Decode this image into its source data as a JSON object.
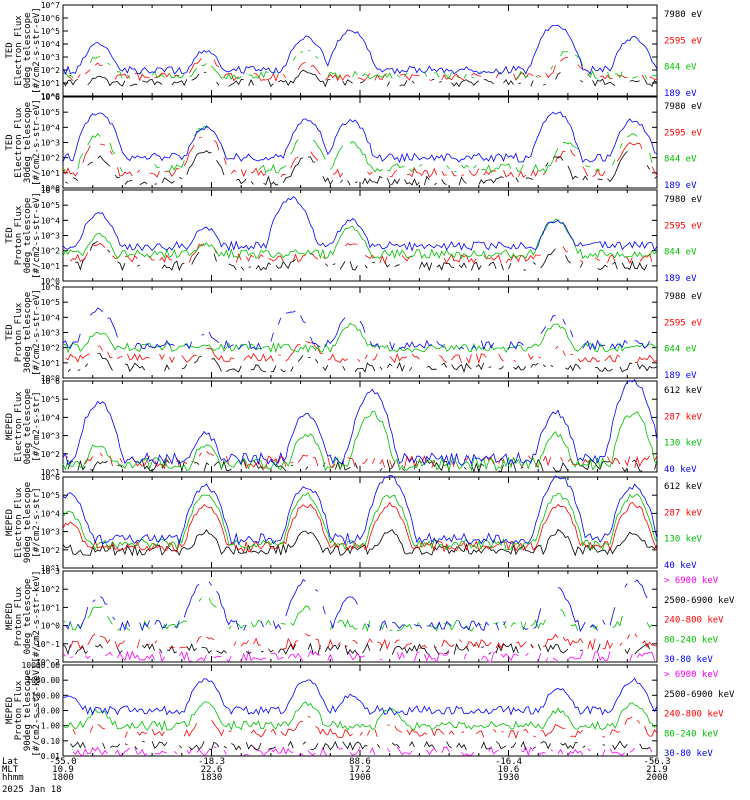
{
  "chart_data": [
    {
      "type": "line",
      "ylabel": [
        "TED",
        "Electron Flux",
        "0deg telescope",
        "[#/cm2-s-str-eV]"
      ],
      "yticks": [
        "10^0",
        "10^1",
        "10^2",
        "10^3",
        "10^4",
        "10^5",
        "10^6",
        "10^7"
      ],
      "yscale": "log",
      "ylim": [
        1,
        10000000
      ],
      "series": [
        {
          "name": "7980 eV",
          "color": "#000000",
          "baseline": 10,
          "sparse": true,
          "peaks": [
            [
              1812,
              30
            ],
            [
              1848,
              60
            ],
            [
              1882,
              80
            ],
            [
              1970,
              120
            ]
          ]
        },
        {
          "name": "2595 eV",
          "color": "#ff0000",
          "baseline": 30,
          "sparse": true,
          "peaks": [
            [
              1812,
              300
            ],
            [
              1848,
              1000
            ],
            [
              1882,
              300
            ],
            [
              1970,
              1000
            ]
          ]
        },
        {
          "name": "844 eV",
          "color": "#00c000",
          "baseline": 40,
          "sparse": true,
          "peaks": [
            [
              1812,
              1000
            ],
            [
              1848,
              300
            ],
            [
              1882,
              3000
            ],
            [
              1970,
              3000
            ]
          ]
        },
        {
          "name": "189 eV",
          "color": "#0000ff",
          "baseline": 100,
          "sparse": false,
          "peaks": [
            [
              1812,
              10000
            ],
            [
              1848,
              3000
            ],
            [
              1882,
              30000
            ],
            [
              1897,
              100000
            ],
            [
              1966,
              300000
            ],
            [
              1992,
              30000
            ]
          ]
        }
      ]
    },
    {
      "type": "line",
      "ylabel": [
        "TED",
        "Electron Flux",
        "30deg telescope",
        "[#/cm2-s-str-eV]"
      ],
      "yticks": [
        "10^0",
        "10^1",
        "10^2",
        "10^3",
        "10^4",
        "10^5",
        "10^6"
      ],
      "yscale": "log",
      "ylim": [
        1,
        1000000
      ],
      "series": [
        {
          "name": "7980 eV",
          "color": "#000000",
          "baseline": 3,
          "sparse": true,
          "peaks": [
            [
              1812,
              100
            ],
            [
              1848,
              300
            ],
            [
              1882,
              100
            ],
            [
              1966,
              100
            ],
            [
              1992,
              300
            ]
          ]
        },
        {
          "name": "2595 eV",
          "color": "#ff0000",
          "baseline": 10,
          "sparse": true,
          "peaks": [
            [
              1812,
              1000
            ],
            [
              1848,
              3000
            ],
            [
              1882,
              300
            ],
            [
              1970,
              300
            ],
            [
              1992,
              1000
            ]
          ]
        },
        {
          "name": "844 eV",
          "color": "#00c000",
          "baseline": 20,
          "sparse": true,
          "peaks": [
            [
              1812,
              3000
            ],
            [
              1848,
              10000
            ],
            [
              1882,
              3000
            ],
            [
              1897,
              1000
            ],
            [
              1970,
              1000
            ],
            [
              1992,
              3000
            ]
          ]
        },
        {
          "name": "189 eV",
          "color": "#0000ff",
          "baseline": 100,
          "sparse": false,
          "peaks": [
            [
              1812,
              100000
            ],
            [
              1848,
              10000
            ],
            [
              1882,
              30000
            ],
            [
              1897,
              30000
            ],
            [
              1966,
              100000
            ],
            [
              1992,
              30000
            ]
          ]
        }
      ]
    },
    {
      "type": "line",
      "ylabel": [
        "TED",
        "Proton Flux",
        "0deg telescope",
        "[#/cm2-s-str-eV]"
      ],
      "yticks": [
        "10^0",
        "10^1",
        "10^2",
        "10^3",
        "10^4",
        "10^5",
        "10^6"
      ],
      "yscale": "log",
      "ylim": [
        1,
        1000000
      ],
      "series": [
        {
          "name": "7980 eV",
          "color": "#000000",
          "baseline": 10,
          "sparse": true,
          "peaks": [
            [
              1812,
              300
            ],
            [
              1848,
              100
            ],
            [
              1882,
              100
            ],
            [
              1966,
              100
            ]
          ]
        },
        {
          "name": "2595 eV",
          "color": "#ff0000",
          "baseline": 30,
          "sparse": true,
          "peaks": [
            [
              1812,
              300
            ],
            [
              1848,
              300
            ],
            [
              1897,
              300
            ],
            [
              1966,
              300
            ]
          ]
        },
        {
          "name": "844 eV",
          "color": "#00c000",
          "baseline": 60,
          "sparse": false,
          "peaks": [
            [
              1812,
              1000
            ],
            [
              1848,
              300
            ],
            [
              1897,
              3000
            ],
            [
              1966,
              10000
            ]
          ]
        },
        {
          "name": "189 eV",
          "color": "#0000ff",
          "baseline": 200,
          "sparse": false,
          "peaks": [
            [
              1812,
              30000
            ],
            [
              1848,
              3000
            ],
            [
              1877,
              300000
            ],
            [
              1897,
              10000
            ],
            [
              1966,
              10000
            ]
          ]
        }
      ]
    },
    {
      "type": "line",
      "ylabel": [
        "TED",
        "Proton Flux",
        "30deg telescope",
        "[#/cm2-s-str-eV]"
      ],
      "yticks": [
        "10^0",
        "10^1",
        "10^2",
        "10^3",
        "10^4",
        "10^5",
        "10^6"
      ],
      "yscale": "log",
      "ylim": [
        1,
        1000000
      ],
      "series": [
        {
          "name": "7980 eV",
          "color": "#000000",
          "baseline": 5,
          "sparse": true,
          "peaks": [
            [
              1812,
              30
            ],
            [
              1848,
              30
            ],
            [
              1882,
              30
            ]
          ]
        },
        {
          "name": "2595 eV",
          "color": "#ff0000",
          "baseline": 20,
          "sparse": true,
          "peaks": [
            [
              1812,
              100
            ],
            [
              1848,
              100
            ],
            [
              1882,
              300
            ],
            [
              1966,
              100
            ]
          ]
        },
        {
          "name": "844 eV",
          "color": "#00c000",
          "baseline": 100,
          "sparse": false,
          "peaks": [
            [
              1812,
              1000
            ],
            [
              1897,
              3000
            ],
            [
              1966,
              3000
            ]
          ]
        },
        {
          "name": "189 eV",
          "color": "#0000ff",
          "baseline": 150,
          "sparse": true,
          "peaks": [
            [
              1812,
              30000
            ],
            [
              1848,
              1000
            ],
            [
              1877,
              30000
            ],
            [
              1897,
              10000
            ],
            [
              1966,
              10000
            ]
          ]
        }
      ]
    },
    {
      "type": "line",
      "ylabel": [
        "MEPED",
        "Electron Flux",
        "0deg telescope",
        "[#/cm2-s-str]"
      ],
      "yticks": [
        "10^1",
        "10^2",
        "10^3",
        "10^4",
        "10^5",
        "10^6"
      ],
      "yscale": "log",
      "ylim": [
        50,
        1000000
      ],
      "series": [
        {
          "name": "612 keV",
          "color": "#000000",
          "baseline": 100,
          "sparse": true,
          "peaks": []
        },
        {
          "name": "287 keV",
          "color": "#ff0000",
          "baseline": 150,
          "sparse": true,
          "peaks": [
            [
              1812,
              300
            ],
            [
              1848,
              500
            ],
            [
              1882,
              300
            ],
            [
              1966,
              300
            ]
          ]
        },
        {
          "name": "130 keV",
          "color": "#00c000",
          "baseline": 120,
          "sparse": false,
          "peaks": [
            [
              1812,
              1000
            ],
            [
              1848,
              1000
            ],
            [
              1882,
              3000
            ],
            [
              1904,
              30000
            ],
            [
              1966,
              3000
            ],
            [
              1992,
              30000
            ]
          ]
        },
        {
          "name": "40 keV",
          "color": "#0000ff",
          "baseline": 200,
          "sparse": false,
          "peaks": [
            [
              1812,
              100000
            ],
            [
              1848,
              3000
            ],
            [
              1882,
              30000
            ],
            [
              1904,
              300000
            ],
            [
              1966,
              30000
            ],
            [
              1992,
              1000000
            ]
          ]
        }
      ]
    },
    {
      "type": "line",
      "ylabel": [
        "MEPED",
        "Electron Flux",
        "90deg telescope",
        "[#/cm2-s-str]"
      ],
      "yticks": [
        "10^1",
        "10^2",
        "10^3",
        "10^4",
        "10^5",
        "10^6"
      ],
      "yscale": "log",
      "ylim": [
        10,
        1000000
      ],
      "series": [
        {
          "name": "612 keV",
          "color": "#000000",
          "baseline": 100,
          "sparse": false,
          "peaks": [
            [
              1848,
              1000
            ],
            [
              1882,
              1000
            ],
            [
              1910,
              1000
            ],
            [
              1967,
              1000
            ],
            [
              1992,
              1000
            ]
          ]
        },
        {
          "name": "287 keV",
          "color": "#ff0000",
          "baseline": 150,
          "sparse": false,
          "peaks": [
            [
              1802,
              3000
            ],
            [
              1848,
              30000
            ],
            [
              1882,
              30000
            ],
            [
              1910,
              30000
            ],
            [
              1967,
              30000
            ],
            [
              1992,
              30000
            ]
          ]
        },
        {
          "name": "130 keV",
          "color": "#00c000",
          "baseline": 200,
          "sparse": false,
          "peaks": [
            [
              1802,
              10000
            ],
            [
              1848,
              100000
            ],
            [
              1882,
              100000
            ],
            [
              1910,
              100000
            ],
            [
              1967,
              100000
            ],
            [
              1992,
              100000
            ]
          ]
        },
        {
          "name": "40 keV",
          "color": "#0000ff",
          "baseline": 400,
          "sparse": false,
          "peaks": [
            [
              1802,
              100000
            ],
            [
              1848,
              300000
            ],
            [
              1882,
              300000
            ],
            [
              1910,
              1000000
            ],
            [
              1967,
              1000000
            ],
            [
              1992,
              300000
            ]
          ]
        }
      ]
    },
    {
      "type": "line",
      "ylabel": [
        "MEPED",
        "Proton Flux",
        "0deg telescope",
        "[#/cm2-s-str-keV]"
      ],
      "yticks": [
        "10^-2",
        "10^-1",
        "10^0",
        "10^1",
        "10^2",
        "10^3"
      ],
      "yscale": "log",
      "ylim": [
        0.01,
        1000
      ],
      "series": [
        {
          "name": "> 6900 keV",
          "color": "#ff00ff",
          "baseline": 0.02,
          "sparse": true,
          "peaks": []
        },
        {
          "name": "2500-6900 keV",
          "color": "#000000",
          "baseline": 0.05,
          "sparse": true,
          "peaks": []
        },
        {
          "name": "240-800 keV",
          "color": "#ff0000",
          "baseline": 0.1,
          "sparse": true,
          "peaks": [
            [
              1812,
              0.3
            ],
            [
              1848,
              0.3
            ],
            [
              1882,
              0.3
            ],
            [
              1966,
              0.3
            ],
            [
              1992,
              0.3
            ]
          ]
        },
        {
          "name": "80-240 keV",
          "color": "#00c000",
          "baseline": 1,
          "sparse": true,
          "peaks": [
            [
              1812,
              10
            ],
            [
              1848,
              30
            ],
            [
              1882,
              10
            ],
            [
              1966,
              10
            ],
            [
              1992,
              10
            ]
          ]
        },
        {
          "name": "30-80 keV",
          "color": "#0000ff",
          "baseline": 1,
          "sparse": true,
          "peaks": [
            [
              1812,
              30
            ],
            [
              1848,
              300
            ],
            [
              1882,
              300
            ],
            [
              1897,
              30
            ],
            [
              1966,
              100
            ],
            [
              1992,
              300
            ]
          ]
        }
      ]
    },
    {
      "type": "line",
      "ylabel": [
        "MEPED",
        "Proton Flux",
        "90deg telescope",
        "[#/cm2-s-str-keV]"
      ],
      "yticks": [
        "0.01",
        "0.10",
        "1.00",
        "10.00",
        "100.00",
        "1000.00",
        "10000.00"
      ],
      "yscale": "log",
      "ylim": [
        0.01,
        10000
      ],
      "series": [
        {
          "name": "> 6900 keV",
          "color": "#ff00ff",
          "baseline": 0.02,
          "sparse": true,
          "peaks": []
        },
        {
          "name": "2500-6900 keV",
          "color": "#000000",
          "baseline": 0.05,
          "sparse": true,
          "peaks": []
        },
        {
          "name": "240-800 keV",
          "color": "#ff0000",
          "baseline": 0.3,
          "sparse": true,
          "peaks": [
            [
              1812,
              1
            ],
            [
              1848,
              3
            ],
            [
              1882,
              3
            ],
            [
              1910,
              1
            ],
            [
              1967,
              1
            ],
            [
              1992,
              3
            ]
          ]
        },
        {
          "name": "80-240 keV",
          "color": "#00c000",
          "baseline": 1,
          "sparse": false,
          "peaks": [
            [
              1812,
              10
            ],
            [
              1848,
              30
            ],
            [
              1882,
              30
            ],
            [
              1910,
              10
            ],
            [
              1967,
              10
            ],
            [
              1992,
              30
            ]
          ]
        },
        {
          "name": "30-80 keV",
          "color": "#0000ff",
          "baseline": 10,
          "sparse": false,
          "peaks": [
            [
              1802,
              100
            ],
            [
              1848,
              1000
            ],
            [
              1882,
              1000
            ],
            [
              1897,
              100
            ],
            [
              1967,
              300
            ],
            [
              1992,
              1000
            ]
          ]
        }
      ]
    }
  ],
  "xaxis": {
    "range": [
      1800,
      2000
    ],
    "ticks": [
      {
        "lat": "-55.0",
        "mlt": "10.9",
        "hhmm": "1800",
        "pos": 0
      },
      {
        "lat": "-18.3",
        "mlt": "22.6",
        "hhmm": "1830",
        "pos": 0.25
      },
      {
        "lat": "88.6",
        "mlt": "17.2",
        "hhmm": "1900",
        "pos": 0.5
      },
      {
        "lat": "-16.4",
        "mlt": "10.6",
        "hhmm": "1930",
        "pos": 0.75
      },
      {
        "lat": "-56.3",
        "mlt": "21.9",
        "hhmm": "2000",
        "pos": 1
      }
    ],
    "row_labels": [
      "Lat",
      "MLT",
      "hhmm"
    ],
    "date": "2025 Jan 18"
  }
}
